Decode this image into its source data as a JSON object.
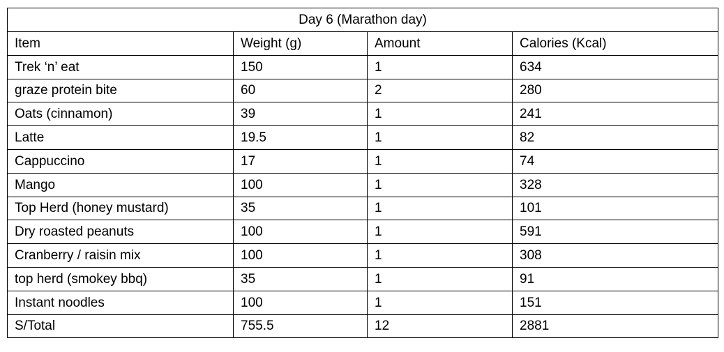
{
  "table": {
    "title": "Day 6 (Marathon day)",
    "headers": [
      "Item",
      "Weight (g)",
      "Amount",
      "Calories (Kcal)"
    ],
    "rows": [
      [
        "Trek ‘n’ eat",
        "150",
        "1",
        "634"
      ],
      [
        "graze protein bite",
        "60",
        "2",
        "280"
      ],
      [
        "Oats (cinnamon)",
        "39",
        "1",
        "241"
      ],
      [
        "Latte",
        "19.5",
        "1",
        "82"
      ],
      [
        "Cappuccino",
        "17",
        "1",
        "74"
      ],
      [
        "Mango",
        "100",
        "1",
        "328"
      ],
      [
        "Top Herd (honey mustard)",
        "35",
        "1",
        "101"
      ],
      [
        "Dry roasted peanuts",
        "100",
        "1",
        "591"
      ],
      [
        "Cranberry / raisin mix",
        "100",
        "1",
        "308"
      ],
      [
        "top herd (smokey bbq)",
        "35",
        "1",
        "91"
      ],
      [
        "Instant noodles",
        "100",
        "1",
        "151"
      ],
      [
        "S/Total",
        "755.5",
        "12",
        "2881"
      ]
    ]
  }
}
